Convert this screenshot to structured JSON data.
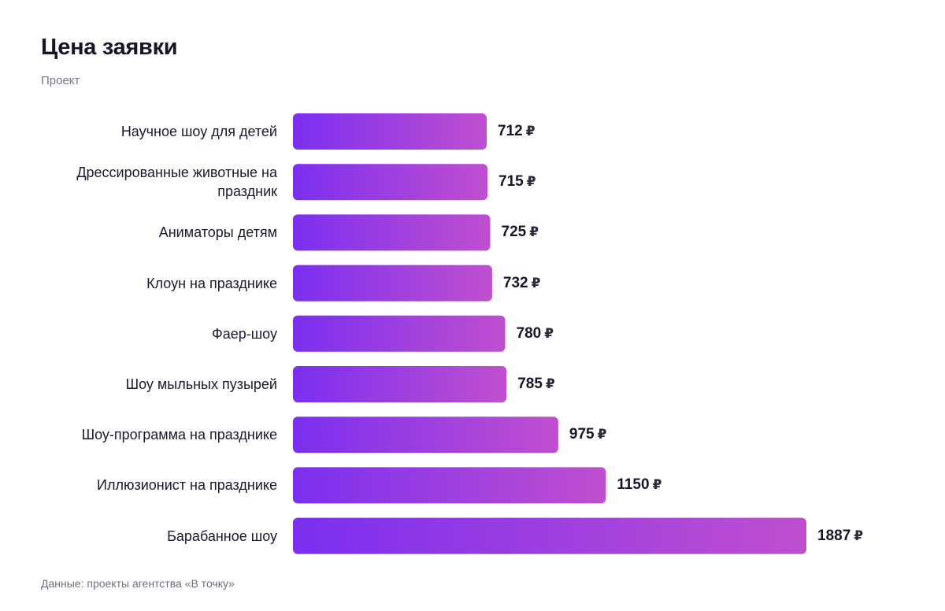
{
  "header": {
    "title": "Цена заявки",
    "subtitle": "Проект"
  },
  "footer": {
    "source": "Данные: проекты агентства «В точку»"
  },
  "colors": {
    "bar_start": "#7b2ff0",
    "bar_end": "#c04fcf"
  },
  "chart_data": {
    "type": "bar",
    "orientation": "horizontal",
    "title": "Цена заявки",
    "subtitle": "Проект",
    "currency": "₽",
    "categories": [
      "Научное шоу для детей",
      "Дрессированные животные на праздник",
      "Аниматоры детям",
      "Клоун на празднике",
      "Фаер-шоу",
      "Шоу мыльных пузырей",
      "Шоу-программа на празднике",
      "Иллюзионист на празднике",
      "Барабанное шоу"
    ],
    "values": [
      712,
      715,
      725,
      732,
      780,
      785,
      975,
      1150,
      1887
    ],
    "grid": false,
    "legend": "none"
  }
}
